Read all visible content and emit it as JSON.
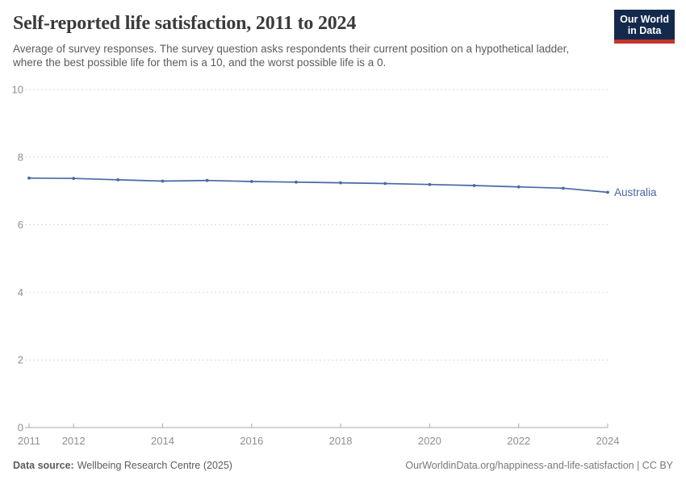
{
  "header": {
    "title": "Self-reported life satisfaction, 2011 to 2024",
    "subtitle": "Average of survey responses. The survey question asks respondents their current position on a hypothetical ladder, where the best possible life for them is a 10, and the worst possible life is a 0.",
    "logo": {
      "line1": "Our World",
      "line2": "in Data"
    }
  },
  "chart_data": {
    "type": "line",
    "title": "Self-reported life satisfaction, 2011 to 2024",
    "x": [
      2011,
      2012,
      2013,
      2014,
      2015,
      2016,
      2017,
      2018,
      2019,
      2020,
      2021,
      2022,
      2023,
      2024
    ],
    "series": [
      {
        "name": "Australia",
        "color": "#4968a3",
        "values": [
          7.38,
          7.37,
          7.33,
          7.29,
          7.31,
          7.28,
          7.26,
          7.24,
          7.22,
          7.19,
          7.16,
          7.12,
          7.08,
          6.96
        ]
      }
    ],
    "xlabel": "",
    "ylabel": "",
    "xticks": [
      2011,
      2012,
      2014,
      2016,
      2018,
      2020,
      2022,
      2024
    ],
    "yticks": [
      0,
      2,
      4,
      6,
      8,
      10
    ],
    "xlim": [
      2011,
      2024
    ],
    "ylim": [
      0,
      10
    ],
    "grid": "horizontal-dashed",
    "legend": "inline-end-label"
  },
  "footer": {
    "source_label": "Data source:",
    "source_value": "Wellbeing Research Centre (2025)",
    "attribution": "OurWorldinData.org/happiness-and-life-satisfaction | CC BY"
  },
  "colors": {
    "accent_line": "#4968a3",
    "logo_bg": "#142a4d",
    "logo_accent": "#c2352e",
    "grid": "#dcdcdc",
    "axis": "#a8a8a8",
    "tick_label": "#8f8f8f",
    "title_text": "#3b3b3b",
    "subtitle_text": "#5c5c5c"
  }
}
